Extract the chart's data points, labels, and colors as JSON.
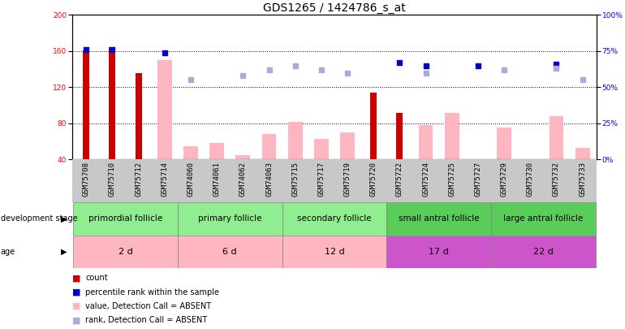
{
  "title": "GDS1265 / 1424786_s_at",
  "samples": [
    "GSM75708",
    "GSM75710",
    "GSM75712",
    "GSM75714",
    "GSM74060",
    "GSM74061",
    "GSM74062",
    "GSM74063",
    "GSM75715",
    "GSM75717",
    "GSM75719",
    "GSM75720",
    "GSM75722",
    "GSM75724",
    "GSM75725",
    "GSM75727",
    "GSM75729",
    "GSM75730",
    "GSM75732",
    "GSM75733"
  ],
  "count_values": [
    161,
    164,
    136,
    null,
    null,
    null,
    null,
    null,
    null,
    null,
    null,
    114,
    92,
    null,
    null,
    null,
    null,
    null,
    null,
    null
  ],
  "absent_values": [
    null,
    null,
    null,
    150,
    55,
    58,
    45,
    68,
    82,
    63,
    70,
    null,
    null,
    78,
    92,
    null,
    75,
    null,
    88,
    53
  ],
  "percentile_rank": [
    76,
    76,
    null,
    74,
    null,
    null,
    null,
    null,
    null,
    null,
    null,
    null,
    67,
    65,
    null,
    65,
    null,
    null,
    66,
    null
  ],
  "absent_rank": [
    null,
    null,
    null,
    null,
    55,
    null,
    58,
    62,
    65,
    62,
    60,
    null,
    null,
    60,
    null,
    null,
    62,
    null,
    63,
    55
  ],
  "groups": [
    {
      "label": "primordial follicle",
      "age": "2 d",
      "start": 0,
      "end": 4,
      "bg_color": "#90EE90",
      "age_color": "#FFB6C1"
    },
    {
      "label": "primary follicle",
      "age": "6 d",
      "start": 4,
      "end": 8,
      "bg_color": "#90EE90",
      "age_color": "#FFB6C1"
    },
    {
      "label": "secondary follicle",
      "age": "12 d",
      "start": 8,
      "end": 12,
      "bg_color": "#90EE90",
      "age_color": "#FFB6C1"
    },
    {
      "label": "small antral follicle",
      "age": "17 d",
      "start": 12,
      "end": 16,
      "bg_color": "#5ACC5A",
      "age_color": "#CC55CC"
    },
    {
      "label": "large antral follicle",
      "age": "22 d",
      "start": 16,
      "end": 20,
      "bg_color": "#5ACC5A",
      "age_color": "#CC55CC"
    }
  ],
  "ylim_left": [
    40,
    200
  ],
  "ylim_right": [
    0,
    100
  ],
  "yticks_left": [
    40,
    80,
    120,
    160,
    200
  ],
  "yticks_right": [
    0,
    25,
    50,
    75,
    100
  ],
  "count_color": "#CC0000",
  "absent_bar_color": "#FFB6C1",
  "percentile_color": "#0000CC",
  "absent_rank_color": "#AAAADD",
  "grid_color": "black",
  "title_fontsize": 10,
  "tick_fontsize": 6.5,
  "label_fontsize": 7.5
}
